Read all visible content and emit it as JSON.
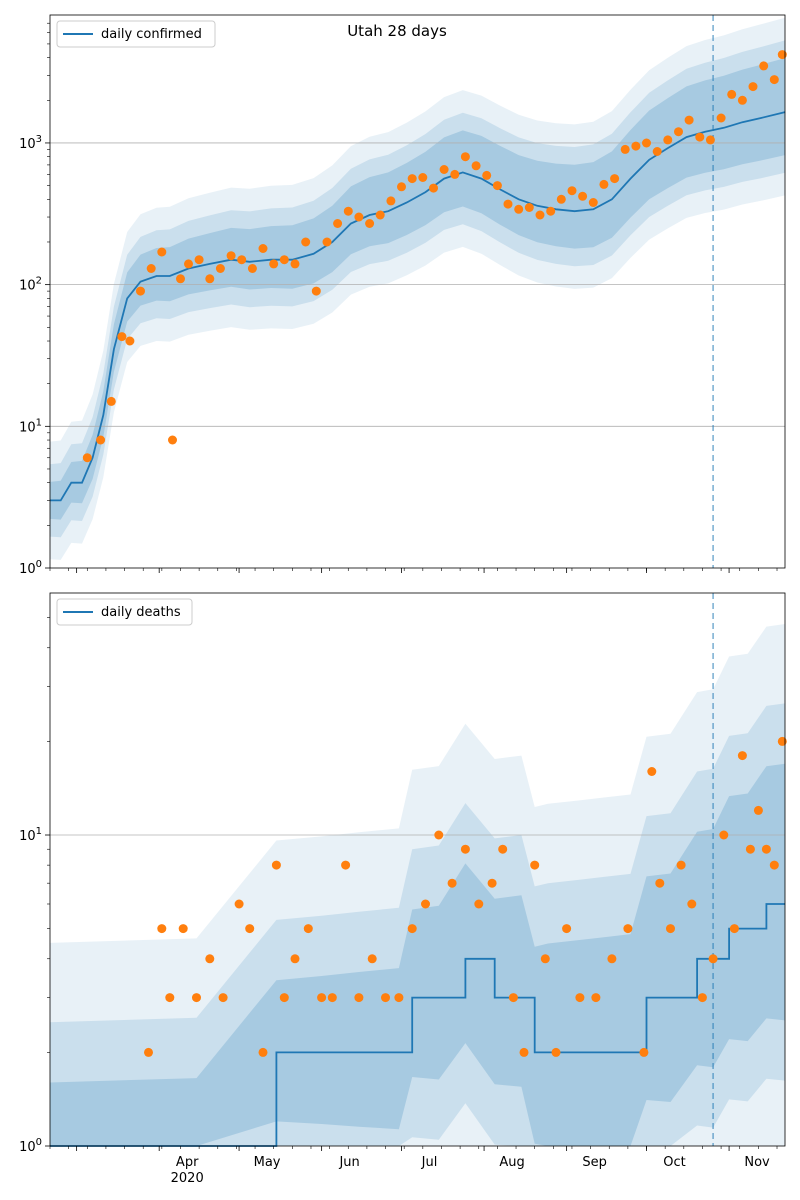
{
  "chart_data": [
    {
      "type": "line",
      "title": "Utah 28 days",
      "yscale": "log",
      "ylim": [
        1,
        8000
      ],
      "xlim": [
        "2020-02-20",
        "2020-11-22"
      ],
      "y_ticks": [
        1,
        10,
        100,
        1000
      ],
      "y_tick_labels": [
        "10^0",
        "10^1",
        "10^2",
        "10^3"
      ],
      "grid": "y-major",
      "legend": {
        "position": "top-left",
        "entries": [
          "daily confirmed"
        ]
      },
      "vline_date": "2020-10-26",
      "colors": {
        "line": "#1f77b4",
        "points": "#ff7f0e",
        "band": "#1f77b4"
      },
      "series": [
        {
          "name": "daily confirmed",
          "kind": "line",
          "x": [
            "2020-02-20",
            "2020-02-24",
            "2020-02-28",
            "2020-03-03",
            "2020-03-07",
            "2020-03-11",
            "2020-03-15",
            "2020-03-20",
            "2020-03-25",
            "2020-03-31",
            "2020-04-05",
            "2020-04-12",
            "2020-04-20",
            "2020-04-28",
            "2020-05-05",
            "2020-05-13",
            "2020-05-21",
            "2020-05-29",
            "2020-06-05",
            "2020-06-12",
            "2020-06-19",
            "2020-06-26",
            "2020-07-03",
            "2020-07-10",
            "2020-07-17",
            "2020-07-24",
            "2020-07-31",
            "2020-08-07",
            "2020-08-14",
            "2020-08-21",
            "2020-08-28",
            "2020-09-04",
            "2020-09-11",
            "2020-09-18",
            "2020-09-25",
            "2020-10-02",
            "2020-10-09",
            "2020-10-16",
            "2020-10-23",
            "2020-10-30",
            "2020-11-06",
            "2020-11-13",
            "2020-11-22"
          ],
          "y": [
            3,
            3,
            4,
            4,
            6,
            12,
            35,
            80,
            105,
            115,
            115,
            130,
            140,
            150,
            145,
            150,
            150,
            165,
            200,
            270,
            310,
            330,
            380,
            450,
            560,
            620,
            560,
            470,
            400,
            360,
            340,
            330,
            340,
            400,
            560,
            760,
            920,
            1100,
            1200,
            1280,
            1400,
            1500,
            1650
          ]
        },
        {
          "name": "",
          "kind": "points",
          "x": [
            "2020-03-05",
            "2020-03-10",
            "2020-03-14",
            "2020-03-18",
            "2020-03-21",
            "2020-03-25",
            "2020-03-29",
            "2020-04-02",
            "2020-04-06",
            "2020-04-09",
            "2020-04-12",
            "2020-04-16",
            "2020-04-20",
            "2020-04-24",
            "2020-04-28",
            "2020-05-02",
            "2020-05-06",
            "2020-05-10",
            "2020-05-14",
            "2020-05-18",
            "2020-05-22",
            "2020-05-26",
            "2020-05-30",
            "2020-06-03",
            "2020-06-07",
            "2020-06-11",
            "2020-06-15",
            "2020-06-19",
            "2020-06-23",
            "2020-06-27",
            "2020-07-01",
            "2020-07-05",
            "2020-07-09",
            "2020-07-13",
            "2020-07-17",
            "2020-07-21",
            "2020-07-25",
            "2020-07-29",
            "2020-08-02",
            "2020-08-06",
            "2020-08-10",
            "2020-08-14",
            "2020-08-18",
            "2020-08-22",
            "2020-08-26",
            "2020-08-30",
            "2020-09-03",
            "2020-09-07",
            "2020-09-11",
            "2020-09-15",
            "2020-09-19",
            "2020-09-23",
            "2020-09-27",
            "2020-10-01",
            "2020-10-05",
            "2020-10-09",
            "2020-10-13",
            "2020-10-17",
            "2020-10-21",
            "2020-10-25",
            "2020-10-29",
            "2020-11-02",
            "2020-11-06",
            "2020-11-10",
            "2020-11-14",
            "2020-11-18",
            "2020-11-21"
          ],
          "y": [
            6,
            8,
            15,
            43,
            40,
            90,
            130,
            170,
            8,
            110,
            140,
            150,
            110,
            130,
            160,
            150,
            130,
            180,
            140,
            150,
            140,
            200,
            90,
            200,
            270,
            330,
            300,
            270,
            310,
            390,
            490,
            560,
            570,
            480,
            650,
            600,
            800,
            690,
            590,
            500,
            370,
            340,
            350,
            310,
            330,
            400,
            460,
            420,
            380,
            510,
            560,
            900,
            950,
            1000,
            870,
            1050,
            1200,
            1450,
            1100,
            1050,
            1500,
            2200,
            2000,
            2500,
            3500,
            2800,
            4200
          ]
        }
      ]
    },
    {
      "type": "line",
      "title": "",
      "yscale": "log",
      "ylim": [
        1,
        60
      ],
      "xlim": [
        "2020-02-20",
        "2020-11-22"
      ],
      "y_ticks": [
        1,
        10
      ],
      "y_tick_labels": [
        "10^0",
        "10^1"
      ],
      "grid": "y-major",
      "legend": {
        "position": "top-left",
        "entries": [
          "daily deaths"
        ]
      },
      "vline_date": "2020-10-26",
      "x_tick_labels": [
        "Apr\n2020",
        "May",
        "Jun",
        "Jul",
        "Aug",
        "Sep",
        "Oct",
        "Nov"
      ],
      "x_tick_dates": [
        "2020-04-01",
        "2020-05-01",
        "2020-06-01",
        "2020-07-01",
        "2020-08-01",
        "2020-09-01",
        "2020-10-01",
        "2020-11-01"
      ],
      "colors": {
        "line": "#1f77b4",
        "points": "#ff7f0e",
        "band": "#1f77b4"
      },
      "series": [
        {
          "name": "daily deaths",
          "kind": "line",
          "x": [
            "2020-02-20",
            "2020-04-15",
            "2020-05-15",
            "2020-06-01",
            "2020-06-15",
            "2020-06-30",
            "2020-07-05",
            "2020-07-15",
            "2020-07-25",
            "2020-08-05",
            "2020-08-15",
            "2020-08-20",
            "2020-08-25",
            "2020-09-05",
            "2020-09-15",
            "2020-09-25",
            "2020-10-01",
            "2020-10-10",
            "2020-10-20",
            "2020-10-26",
            "2020-11-01",
            "2020-11-08",
            "2020-11-15",
            "2020-11-22"
          ],
          "y": [
            1,
            1,
            2,
            2,
            2,
            2,
            3,
            3,
            4,
            3,
            3,
            2,
            2,
            2,
            2,
            2,
            3,
            3,
            4,
            4,
            5,
            5,
            6,
            6
          ]
        },
        {
          "name": "",
          "kind": "points",
          "x": [
            "2020-03-28",
            "2020-04-02",
            "2020-04-05",
            "2020-04-10",
            "2020-04-15",
            "2020-04-20",
            "2020-04-25",
            "2020-05-01",
            "2020-05-05",
            "2020-05-10",
            "2020-05-15",
            "2020-05-18",
            "2020-05-22",
            "2020-05-27",
            "2020-06-01",
            "2020-06-05",
            "2020-06-10",
            "2020-06-15",
            "2020-06-20",
            "2020-06-25",
            "2020-06-30",
            "2020-07-05",
            "2020-07-10",
            "2020-07-15",
            "2020-07-20",
            "2020-07-25",
            "2020-07-30",
            "2020-08-04",
            "2020-08-08",
            "2020-08-12",
            "2020-08-16",
            "2020-08-20",
            "2020-08-24",
            "2020-08-28",
            "2020-09-01",
            "2020-09-06",
            "2020-09-12",
            "2020-09-18",
            "2020-09-24",
            "2020-09-30",
            "2020-10-03",
            "2020-10-06",
            "2020-10-10",
            "2020-10-14",
            "2020-10-18",
            "2020-10-22",
            "2020-10-26",
            "2020-10-30",
            "2020-11-03",
            "2020-11-06",
            "2020-11-09",
            "2020-11-12",
            "2020-11-15",
            "2020-11-18",
            "2020-11-21"
          ],
          "y": [
            2,
            5,
            3,
            5,
            3,
            4,
            3,
            6,
            5,
            2,
            8,
            3,
            4,
            5,
            3,
            3,
            8,
            3,
            4,
            3,
            3,
            5,
            6,
            10,
            7,
            9,
            6,
            7,
            9,
            3,
            2,
            8,
            4,
            2,
            5,
            3,
            3,
            4,
            5,
            2,
            16,
            7,
            5,
            8,
            6,
            3,
            4,
            10,
            5,
            18,
            9,
            12,
            9,
            8,
            20
          ]
        }
      ]
    }
  ]
}
